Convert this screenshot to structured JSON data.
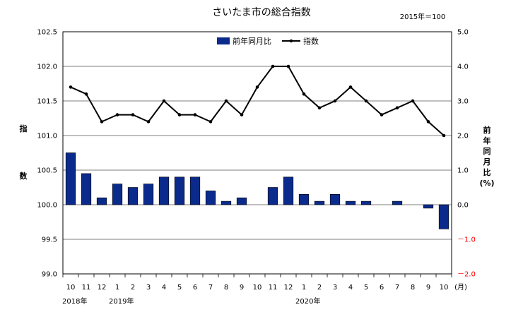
{
  "chart_data": {
    "type": "bar+line",
    "title": "さいたま市の総合指数",
    "base_note": "2015年＝100",
    "categories": [
      "10",
      "11",
      "12",
      "1",
      "2",
      "3",
      "4",
      "5",
      "6",
      "7",
      "8",
      "9",
      "10",
      "11",
      "12",
      "1",
      "2",
      "3",
      "4",
      "5",
      "6",
      "7",
      "8",
      "9",
      "10"
    ],
    "x_unit": "(月)",
    "year_labels": [
      {
        "index": 0,
        "label": "2018年"
      },
      {
        "index": 3,
        "label": "2019年"
      },
      {
        "index": 15,
        "label": "2020年"
      }
    ],
    "left_axis": {
      "label_chars": [
        "指",
        "数"
      ],
      "ylim": [
        99.0,
        102.5
      ],
      "ticks": [
        "99.0",
        "99.5",
        "100.0",
        "100.5",
        "101.0",
        "101.5",
        "102.0",
        "102.5"
      ]
    },
    "right_axis": {
      "label_chars": [
        "前",
        "年",
        "同",
        "月",
        "比",
        "(%)"
      ],
      "ylim": [
        -2.0,
        5.0
      ],
      "ticks": [
        "－2.0",
        "－1.0",
        "0.0",
        "1.0",
        "2.0",
        "3.0",
        "4.0",
        "5.0"
      ],
      "negative_color": "#ff0000"
    },
    "series": [
      {
        "name": "前年同月比",
        "kind": "bar",
        "axis": "right",
        "color": "#0a2a8c",
        "values": [
          1.5,
          0.9,
          0.2,
          0.6,
          0.5,
          0.6,
          0.8,
          0.8,
          0.8,
          0.4,
          0.1,
          0.2,
          0.0,
          0.5,
          0.8,
          0.3,
          0.1,
          0.3,
          0.1,
          0.1,
          0.0,
          0.1,
          0.0,
          -0.1,
          -0.7
        ]
      },
      {
        "name": "指数",
        "kind": "line",
        "axis": "left",
        "color": "#000000",
        "values": [
          101.7,
          101.6,
          101.2,
          101.3,
          101.3,
          101.2,
          101.5,
          101.3,
          101.3,
          101.2,
          101.5,
          101.3,
          101.7,
          102.0,
          102.0,
          101.6,
          101.4,
          101.5,
          101.7,
          101.5,
          101.3,
          101.4,
          101.5,
          101.2,
          101.0
        ]
      }
    ],
    "grid": true,
    "legend_position": "top-center"
  }
}
